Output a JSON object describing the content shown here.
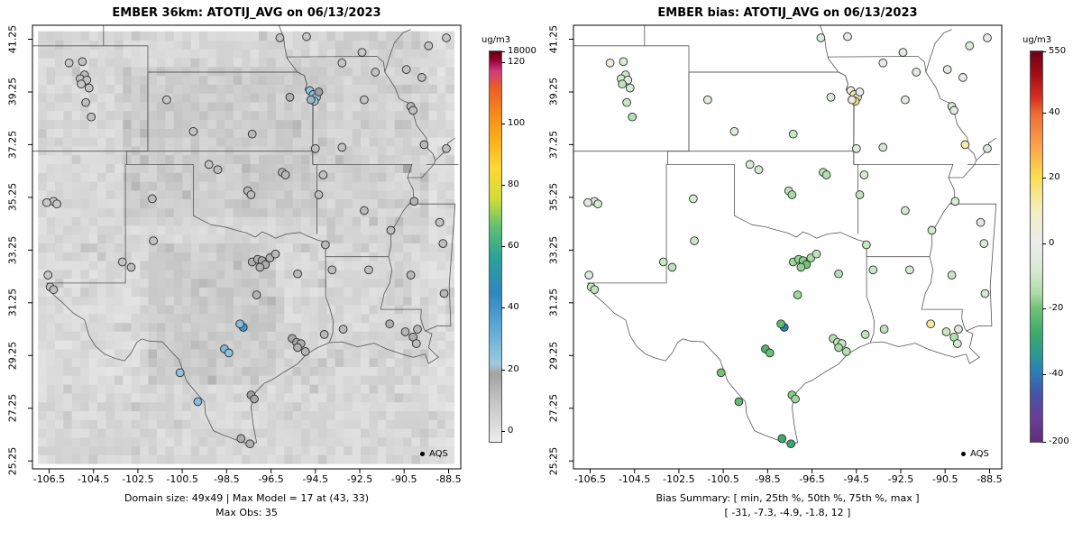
{
  "figure": {
    "panels": [
      {
        "title": "EMBER 36km: ATOTIJ_AVG on 06/13/2023",
        "legend_label": "AQS",
        "units_label": "ug/m3",
        "caption_lines": [
          "Domain size: 49x49 | Max Model = 17 at (43, 33)",
          "Max Obs: 35"
        ]
      },
      {
        "title": "EMBER bias: ATOTIJ_AVG on 06/13/2023",
        "legend_label": "AQS",
        "units_label": "ug/m3",
        "caption_lines": [
          "Bias Summary: [ min, 25th %, 50th %, 75th %, max ]",
          "[ -31, -7.3, -4.9, -1.8, 12 ]"
        ]
      }
    ]
  },
  "chart_data": {
    "type": "scatter",
    "description": "Two-panel air-quality model evaluation map over the south-central US. Left: EMBER 36km gridded model field (gray raster) with AQS station observations as colored dots. Right: model bias at the same AQS stations.",
    "x_axis": {
      "label": "",
      "ticks": [
        -106.5,
        -104.5,
        -102.5,
        -100.5,
        -98.5,
        -96.5,
        -94.5,
        -92.5,
        -90.5,
        -88.5
      ],
      "range": [
        -107.25,
        -87.95
      ]
    },
    "y_axis": {
      "label": "",
      "ticks": [
        25.25,
        27.25,
        29.25,
        31.25,
        33.25,
        35.25,
        37.25,
        39.25,
        41.25
      ],
      "range": [
        24.95,
        41.78
      ]
    },
    "model_grid": {
      "nx": 49,
      "ny": 49,
      "lon_range": [
        -107.0,
        -88.25
      ],
      "lat_range": [
        25.15,
        41.55
      ],
      "max_model": 17,
      "max_at": [
        43,
        33
      ],
      "max_obs": 35
    },
    "bias_summary": {
      "min": -31,
      "p25": -7.3,
      "median": -4.9,
      "p75": -1.8,
      "max": 12
    },
    "stations": {
      "columns": [
        "lon",
        "lat",
        "obs_ug_m3",
        "bias_ug_m3"
      ],
      "rows": [
        [
          -105.6,
          40.35,
          9,
          1
        ],
        [
          -105.0,
          40.4,
          10,
          -2
        ],
        [
          -104.9,
          39.9,
          12,
          -4
        ],
        [
          -105.1,
          39.75,
          11,
          -3
        ],
        [
          -104.8,
          39.7,
          10,
          -1
        ],
        [
          -105.05,
          39.55,
          9,
          -5
        ],
        [
          -104.7,
          39.4,
          10,
          -3
        ],
        [
          -104.85,
          38.85,
          11,
          -4
        ],
        [
          -104.6,
          38.3,
          10,
          -6
        ],
        [
          -96.1,
          41.3,
          10,
          -2
        ],
        [
          -94.9,
          41.35,
          9,
          0
        ],
        [
          -90.4,
          40.1,
          10,
          -1
        ],
        [
          -89.7,
          39.8,
          11,
          0
        ],
        [
          -94.75,
          39.3,
          22,
          2
        ],
        [
          -94.6,
          39.15,
          24,
          8
        ],
        [
          -94.45,
          39.05,
          20,
          3
        ],
        [
          -94.55,
          38.9,
          21,
          12
        ],
        [
          -94.7,
          38.95,
          19,
          1
        ],
        [
          -94.35,
          39.25,
          18,
          0
        ],
        [
          -90.2,
          38.7,
          12,
          -2
        ],
        [
          -90.1,
          38.55,
          11,
          -1
        ],
        [
          -93.3,
          37.15,
          10,
          -3
        ],
        [
          -97.35,
          37.65,
          12,
          -4
        ],
        [
          -95.65,
          39.05,
          14,
          -2
        ],
        [
          -96.0,
          36.2,
          13,
          -5
        ],
        [
          -95.85,
          36.1,
          12,
          -6
        ],
        [
          -97.55,
          35.5,
          12,
          -5
        ],
        [
          -97.4,
          35.35,
          11,
          -7
        ],
        [
          -106.3,
          35.1,
          9,
          -2
        ],
        [
          -106.15,
          35.0,
          8,
          -3
        ],
        [
          -106.6,
          35.05,
          8,
          -1
        ],
        [
          -106.45,
          31.85,
          10,
          -4
        ],
        [
          -106.3,
          31.75,
          11,
          -5
        ],
        [
          -106.55,
          32.3,
          9,
          -2
        ],
        [
          -103.2,
          32.8,
          10,
          -4
        ],
        [
          -102.8,
          32.6,
          11,
          -5
        ],
        [
          -101.8,
          33.6,
          10,
          -4
        ],
        [
          -101.85,
          35.2,
          11,
          -3
        ],
        [
          -99.3,
          36.5,
          10,
          -2
        ],
        [
          -98.9,
          36.3,
          11,
          -3
        ],
        [
          -97.35,
          32.8,
          14,
          -8
        ],
        [
          -97.1,
          32.9,
          15,
          -9
        ],
        [
          -96.9,
          32.85,
          16,
          -10
        ],
        [
          -96.75,
          32.7,
          15,
          -12
        ],
        [
          -96.55,
          32.95,
          13,
          -7
        ],
        [
          -97.0,
          32.6,
          14,
          -9
        ],
        [
          -96.3,
          33.1,
          12,
          -5
        ],
        [
          -97.15,
          31.55,
          13,
          -8
        ],
        [
          -97.75,
          30.32,
          35,
          -31
        ],
        [
          -97.9,
          30.45,
          24,
          -14
        ],
        [
          -98.6,
          29.5,
          25,
          -16
        ],
        [
          -98.4,
          29.35,
          23,
          -13
        ],
        [
          -100.6,
          28.6,
          22,
          -12
        ],
        [
          -99.8,
          27.5,
          24,
          -14
        ],
        [
          -97.4,
          27.75,
          18,
          -10
        ],
        [
          -97.25,
          27.6,
          16,
          -8
        ],
        [
          -97.85,
          26.1,
          15,
          -18
        ],
        [
          -97.45,
          25.9,
          14,
          -20
        ],
        [
          -95.55,
          29.9,
          16,
          -6
        ],
        [
          -95.35,
          29.75,
          17,
          -5
        ],
        [
          -95.15,
          29.7,
          15,
          -4
        ],
        [
          -95.3,
          29.55,
          14,
          -7
        ],
        [
          -94.95,
          29.4,
          13,
          -6
        ],
        [
          -94.1,
          30.05,
          12,
          -5
        ],
        [
          -95.3,
          32.35,
          12,
          -6
        ],
        [
          -93.75,
          32.5,
          11,
          -4
        ],
        [
          -92.3,
          34.75,
          12,
          -3
        ],
        [
          -90.05,
          35.1,
          13,
          -2
        ],
        [
          -91.1,
          34.0,
          11,
          -3
        ],
        [
          -90.2,
          32.3,
          12,
          -4
        ],
        [
          -88.75,
          33.5,
          11,
          -2
        ],
        [
          -88.9,
          34.3,
          10,
          -1
        ],
        [
          -88.7,
          31.6,
          12,
          -3
        ],
        [
          -91.15,
          30.45,
          14,
          9
        ],
        [
          -90.45,
          30.15,
          13,
          -4
        ],
        [
          -90.1,
          29.95,
          15,
          -6
        ],
        [
          -89.9,
          30.25,
          12,
          -2
        ],
        [
          -89.95,
          29.7,
          11,
          -3
        ],
        [
          -93.25,
          30.25,
          12,
          -5
        ],
        [
          -92.1,
          32.5,
          11,
          -3
        ],
        [
          -94.05,
          33.45,
          12,
          -4
        ],
        [
          -94.35,
          35.35,
          11,
          -5
        ],
        [
          -94.15,
          36.1,
          10,
          -3
        ],
        [
          -94.5,
          37.1,
          11,
          -2
        ],
        [
          -92.3,
          38.95,
          10,
          -1
        ],
        [
          -93.3,
          40.35,
          9,
          0
        ],
        [
          -91.8,
          40.0,
          10,
          -1
        ],
        [
          -101.2,
          38.95,
          9,
          -1
        ],
        [
          -100.0,
          37.75,
          10,
          -2
        ],
        [
          -89.6,
          37.25,
          12,
          7
        ],
        [
          -89.4,
          41.0,
          10,
          -2
        ],
        [
          -88.6,
          41.3,
          9,
          0
        ],
        [
          -88.6,
          37.1,
          11,
          -2
        ],
        [
          -92.4,
          40.75,
          9,
          -1
        ]
      ]
    },
    "colorbars": [
      {
        "units": "ug/m3",
        "bar_ticks": [
          [
            "18000",
            0
          ],
          [
            "120",
            0.027
          ],
          [
            "100",
            0.184
          ],
          [
            "80",
            0.341
          ],
          [
            "60",
            0.499
          ],
          [
            "40",
            0.657
          ],
          [
            "20",
            0.815
          ],
          [
            "0",
            0.972
          ]
        ],
        "gradient_stops": [
          [
            0,
            "#5c0013"
          ],
          [
            0.02,
            "#8f0028"
          ],
          [
            0.05,
            "#cf3a7c"
          ],
          [
            0.09,
            "#e85c29"
          ],
          [
            0.15,
            "#f5831f"
          ],
          [
            0.22,
            "#fbab18"
          ],
          [
            0.3,
            "#fdd835"
          ],
          [
            0.38,
            "#cddc39"
          ],
          [
            0.45,
            "#5fbf72"
          ],
          [
            0.53,
            "#2aa198"
          ],
          [
            0.62,
            "#2f86c1"
          ],
          [
            0.72,
            "#64aed6"
          ],
          [
            0.8,
            "#9ecae1"
          ],
          [
            0.825,
            "#a2a2a2"
          ],
          [
            0.9,
            "#c6c6c6"
          ],
          [
            0.965,
            "#dedede"
          ],
          [
            1,
            "#eeeeee"
          ]
        ],
        "value_stops": [
          [
            0,
            "#e6e6e6"
          ],
          [
            10,
            "#c2c2c2"
          ],
          [
            18,
            "#9e9e9e"
          ],
          [
            20,
            "#9ecae1"
          ],
          [
            27,
            "#73b3d8"
          ],
          [
            33,
            "#4f9bcb"
          ],
          [
            40,
            "#3182bd"
          ],
          [
            50,
            "#2aa198"
          ],
          [
            60,
            "#52b788"
          ],
          [
            70,
            "#b5d96a"
          ],
          [
            80,
            "#fdd835"
          ],
          [
            95,
            "#fb9a18"
          ],
          [
            110,
            "#e8542a"
          ],
          [
            120,
            "#b3001e"
          ],
          [
            18000,
            "#5c0013"
          ]
        ]
      },
      {
        "units": "ug/m3",
        "bar_ticks": [
          [
            "550",
            0
          ],
          [
            "40",
            0.157
          ],
          [
            "20",
            0.323
          ],
          [
            "0",
            0.491
          ],
          [
            "-20",
            0.658
          ],
          [
            "-40",
            0.826
          ],
          [
            "-200",
            1.0
          ]
        ],
        "gradient_stops": [
          [
            0,
            "#6d0019"
          ],
          [
            0.06,
            "#a50f15"
          ],
          [
            0.12,
            "#d7301f"
          ],
          [
            0.16,
            "#ef6c35"
          ],
          [
            0.24,
            "#fba04b"
          ],
          [
            0.32,
            "#fcdc4c"
          ],
          [
            0.4,
            "#f4eebc"
          ],
          [
            0.49,
            "#ececec"
          ],
          [
            0.56,
            "#d8ead2"
          ],
          [
            0.62,
            "#abdba6"
          ],
          [
            0.66,
            "#6cc276"
          ],
          [
            0.72,
            "#3cab6b"
          ],
          [
            0.77,
            "#2a9d8f"
          ],
          [
            0.82,
            "#2a7fb8"
          ],
          [
            0.88,
            "#4752a8"
          ],
          [
            0.94,
            "#6a3d9a"
          ],
          [
            1,
            "#5e2d79"
          ]
        ],
        "value_stops": [
          [
            -200,
            "#5e2d79"
          ],
          [
            -100,
            "#6a3d9a"
          ],
          [
            -55,
            "#4752a8"
          ],
          [
            -38,
            "#2e6fb5"
          ],
          [
            -31,
            "#2a7fb8"
          ],
          [
            -25,
            "#2a9d8f"
          ],
          [
            -18,
            "#3cab6b"
          ],
          [
            -12,
            "#74c476"
          ],
          [
            -7,
            "#a8dca4"
          ],
          [
            -3,
            "#d3ead0"
          ],
          [
            0,
            "#e9e9e9"
          ],
          [
            4,
            "#f2eccb"
          ],
          [
            10,
            "#f7e98e"
          ],
          [
            15,
            "#fcdc4c"
          ],
          [
            25,
            "#fbab4b"
          ],
          [
            40,
            "#ef6c35"
          ],
          [
            60,
            "#d7301f"
          ],
          [
            550,
            "#6d0019"
          ]
        ]
      }
    ]
  }
}
